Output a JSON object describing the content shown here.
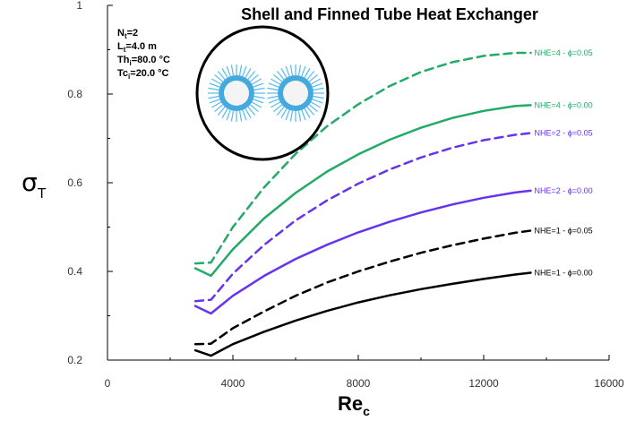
{
  "chart_data": {
    "type": "line",
    "title": "Shell and Finned Tube Heat Exchanger",
    "xlabel": "Re",
    "xlabel_sub": "c",
    "ylabel": "σ",
    "ylabel_sub": "T",
    "xlim": [
      0,
      16000
    ],
    "ylim": [
      0.2,
      1.0
    ],
    "xticks": [
      0,
      4000,
      8000,
      12000,
      16000
    ],
    "yticks": [
      0.2,
      0.4,
      0.6,
      0.8,
      1
    ],
    "xtick_labels": [
      "0",
      "4000",
      "8000",
      "12000",
      "16000"
    ],
    "ytick_labels": [
      "0.2",
      "0.4",
      "0.6",
      "0.8",
      "1"
    ],
    "grid": false,
    "parameters": [
      {
        "main": "N",
        "sub": "t",
        "rest": "=2"
      },
      {
        "main": "L",
        "sub": "t",
        "rest": "=4.0 m"
      },
      {
        "main": "Th",
        "sub": "i",
        "rest": "=80.0 °C"
      },
      {
        "main": "Tc",
        "sub": "i",
        "rest": "=20.0 °C"
      }
    ],
    "series": [
      {
        "name": "NHE=1 - ϕ=0.00",
        "color": "#000000",
        "dash": false,
        "x": [
          2800,
          3300,
          4000,
          5000,
          6000,
          7000,
          8000,
          9000,
          10000,
          11000,
          12000,
          13000,
          13500
        ],
        "y": [
          0.222,
          0.21,
          0.236,
          0.264,
          0.289,
          0.311,
          0.33,
          0.346,
          0.36,
          0.372,
          0.383,
          0.393,
          0.397
        ]
      },
      {
        "name": "NHE=1 - ϕ=0.05",
        "color": "#000000",
        "dash": true,
        "x": [
          2800,
          3300,
          4000,
          5000,
          6000,
          7000,
          8000,
          9000,
          10000,
          11000,
          12000,
          13000,
          13500
        ],
        "y": [
          0.236,
          0.237,
          0.272,
          0.31,
          0.345,
          0.375,
          0.4,
          0.422,
          0.442,
          0.459,
          0.474,
          0.487,
          0.492
        ]
      },
      {
        "name": "NHE=2 - ϕ=0.00",
        "color": "#6633ee",
        "dash": false,
        "x": [
          2800,
          3300,
          4000,
          5000,
          6000,
          7000,
          8000,
          9000,
          10000,
          11000,
          12000,
          13000,
          13500
        ],
        "y": [
          0.322,
          0.305,
          0.345,
          0.39,
          0.428,
          0.46,
          0.488,
          0.512,
          0.533,
          0.551,
          0.566,
          0.578,
          0.582
        ]
      },
      {
        "name": "NHE=2 - ϕ=0.05",
        "color": "#6633ee",
        "dash": true,
        "x": [
          2800,
          3300,
          4000,
          5000,
          6000,
          7000,
          8000,
          9000,
          10000,
          11000,
          12000,
          13000,
          13500
        ],
        "y": [
          0.333,
          0.336,
          0.395,
          0.46,
          0.515,
          0.56,
          0.598,
          0.63,
          0.657,
          0.679,
          0.696,
          0.708,
          0.712
        ]
      },
      {
        "name": "NHE=4 - ϕ=0.00",
        "color": "#22aa66",
        "dash": false,
        "x": [
          2800,
          3300,
          4000,
          5000,
          6000,
          7000,
          8000,
          9000,
          10000,
          11000,
          12000,
          13000,
          13500
        ],
        "y": [
          0.407,
          0.39,
          0.45,
          0.52,
          0.577,
          0.625,
          0.664,
          0.697,
          0.724,
          0.746,
          0.762,
          0.773,
          0.775
        ]
      },
      {
        "name": "NHE=4 - ϕ=0.05",
        "color": "#22aa66",
        "dash": true,
        "x": [
          2800,
          3300,
          4000,
          5000,
          6000,
          7000,
          8000,
          9000,
          10000,
          11000,
          12000,
          13000,
          13500
        ],
        "y": [
          0.418,
          0.42,
          0.5,
          0.59,
          0.665,
          0.727,
          0.777,
          0.818,
          0.85,
          0.872,
          0.886,
          0.893,
          0.893
        ]
      }
    ]
  }
}
